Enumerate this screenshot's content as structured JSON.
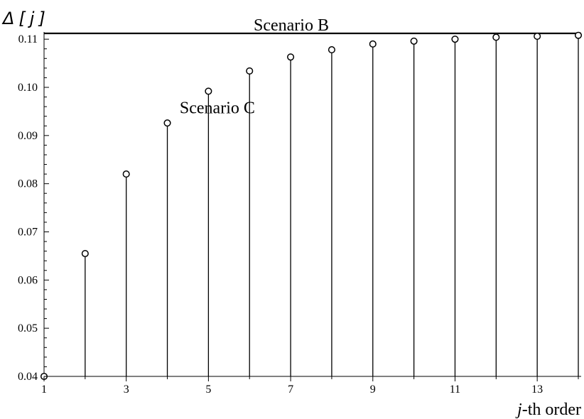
{
  "chart_data": {
    "type": "scatter",
    "style": "stem",
    "ylabel_parts": [
      "Δ",
      "[",
      "j",
      "]"
    ],
    "xlabel_parts": [
      "j",
      "-th order"
    ],
    "xlim": [
      1,
      14
    ],
    "ylim": [
      0.04,
      0.1115
    ],
    "x_ticks": [
      1,
      3,
      5,
      7,
      9,
      11,
      13
    ],
    "y_ticks": [
      0.04,
      0.05,
      0.06,
      0.07,
      0.08,
      0.09,
      0.1,
      0.11
    ],
    "y_tick_labels": [
      "0.04",
      "0.05",
      "0.06",
      "0.07",
      "0.08",
      "0.09",
      "0.10",
      "0.11"
    ],
    "grid": false,
    "series": [
      {
        "name": "Scenario C",
        "marker": "open-circle",
        "x": [
          1,
          2,
          3,
          4,
          5,
          6,
          7,
          8,
          9,
          10,
          11,
          12,
          13,
          14
        ],
        "y": [
          0.04,
          0.0655,
          0.082,
          0.0926,
          0.0992,
          0.1034,
          0.1063,
          0.1078,
          0.109,
          0.1096,
          0.11,
          0.1104,
          0.1106,
          0.1108
        ]
      },
      {
        "name": "Scenario B",
        "type": "hline",
        "y": 0.1112
      }
    ],
    "annotations": [
      {
        "text": "Scenario B",
        "x": 6.1,
        "y": 0.1112
      },
      {
        "text": "Scenario C",
        "x": 4.3,
        "y": 0.0955
      }
    ]
  }
}
